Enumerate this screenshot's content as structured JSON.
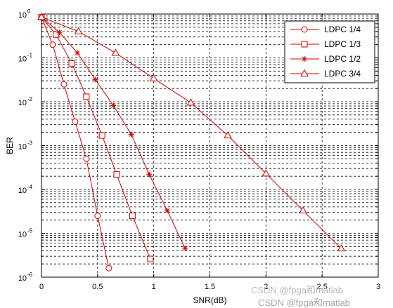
{
  "chart_data": {
    "type": "line",
    "title": "",
    "xlabel": "SNR(dB)",
    "ylabel": "BER",
    "xlim": [
      0,
      3
    ],
    "ylim": [
      1e-06,
      1
    ],
    "yscale": "log",
    "xticks": [
      "0",
      "0.5",
      "1",
      "1.5",
      "2",
      "2.5",
      "3"
    ],
    "yticks": [
      {
        "base": "10",
        "exp": "0"
      },
      {
        "base": "10",
        "exp": "-1"
      },
      {
        "base": "10",
        "exp": "-2"
      },
      {
        "base": "10",
        "exp": "-3"
      },
      {
        "base": "10",
        "exp": "-4"
      },
      {
        "base": "10",
        "exp": "-5"
      },
      {
        "base": "10",
        "exp": "-6"
      }
    ],
    "grid": true,
    "legend_position": "top-right",
    "line_color": "#cc0000",
    "series": [
      {
        "name": "LDPC 1/4",
        "marker": "circle",
        "x": [
          0,
          0.1,
          0.2,
          0.3,
          0.4,
          0.5,
          0.6
        ],
        "y": [
          0.85,
          0.2,
          0.025,
          0.0035,
          0.0005,
          2.5e-05,
          1.6e-06
        ]
      },
      {
        "name": "LDPC 1/3",
        "marker": "square",
        "x": [
          0,
          0.13,
          0.27,
          0.4,
          0.54,
          0.67,
          0.81,
          0.97
        ],
        "y": [
          0.85,
          0.34,
          0.075,
          0.013,
          0.0017,
          0.00022,
          2.5e-05,
          2.6e-06
        ]
      },
      {
        "name": "LDPC 1/2",
        "marker": "star",
        "x": [
          0,
          0.16,
          0.32,
          0.48,
          0.64,
          0.8,
          0.96,
          1.12,
          1.28
        ],
        "y": [
          0.85,
          0.38,
          0.13,
          0.032,
          0.0082,
          0.0018,
          0.00022,
          3.3e-05,
          4.5e-06
        ]
      },
      {
        "name": "LDPC 3/4",
        "marker": "triangle",
        "x": [
          0,
          0.33,
          0.66,
          1.0,
          1.33,
          1.66,
          2.0,
          2.33,
          2.67
        ],
        "y": [
          0.85,
          0.4,
          0.13,
          0.034,
          0.0095,
          0.0017,
          0.00023,
          3.3e-05,
          4.5e-06
        ]
      }
    ]
  },
  "watermark": {
    "text1": "CSDN @fpga和matlab",
    "text2": "CSDN @fpga和matlab"
  }
}
